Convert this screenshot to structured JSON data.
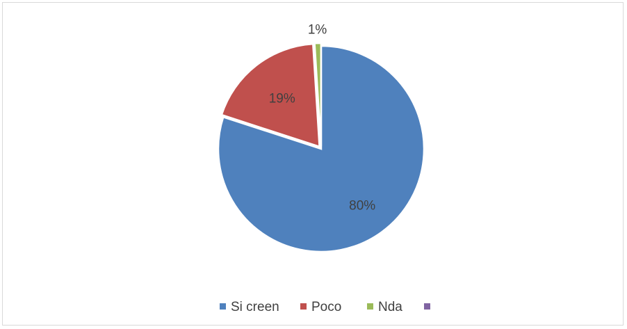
{
  "chart_data": {
    "type": "pie",
    "title": "",
    "categories": [
      "Si creen",
      "Poco",
      "Nda",
      ""
    ],
    "values": [
      80,
      19,
      1,
      0
    ],
    "labels": [
      "80%",
      "19%",
      "1%",
      ""
    ],
    "colors": [
      "#4f81bd",
      "#c0504d",
      "#9bbb59",
      "#8064a2"
    ],
    "legend_position": "bottom"
  }
}
